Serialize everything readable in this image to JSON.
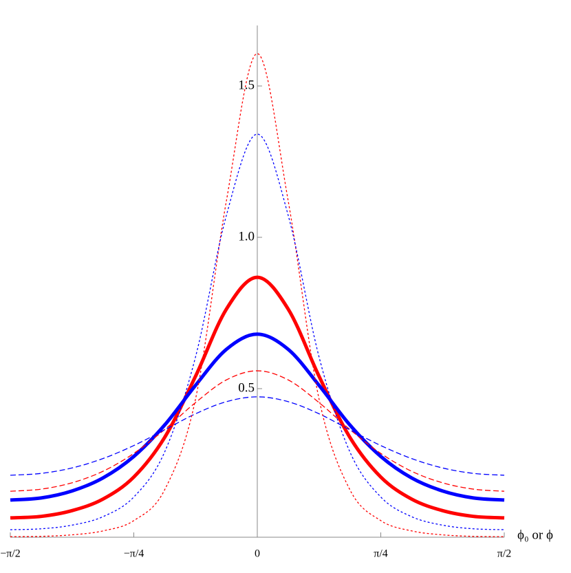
{
  "chart_data": {
    "type": "line",
    "xlabel": "ϕ₀ or ϕ",
    "x": [
      -1.5708,
      -1.3744,
      -1.1781,
      -0.9817,
      -0.7854,
      -0.589,
      -0.3927,
      -0.1963,
      0,
      0.1963,
      0.3927,
      0.589,
      0.7854,
      0.9817,
      1.1781,
      1.3744,
      1.5708
    ],
    "series": [
      {
        "color": "#ff0000",
        "style": "solid",
        "width": 5,
        "values": [
          0.073,
          0.078,
          0.097,
          0.135,
          0.208,
          0.339,
          0.541,
          0.763,
          0.868,
          0.763,
          0.541,
          0.339,
          0.208,
          0.135,
          0.097,
          0.078,
          0.073
        ]
      },
      {
        "color": "#0000ff",
        "style": "solid",
        "width": 5,
        "values": [
          0.132,
          0.139,
          0.162,
          0.205,
          0.276,
          0.38,
          0.511,
          0.63,
          0.68,
          0.63,
          0.511,
          0.38,
          0.276,
          0.205,
          0.162,
          0.139,
          0.132
        ]
      },
      {
        "color": "#ff0000",
        "style": "dashed",
        "width": 1.3,
        "values": [
          0.161,
          0.168,
          0.189,
          0.227,
          0.286,
          0.365,
          0.454,
          0.529,
          0.559,
          0.529,
          0.454,
          0.365,
          0.286,
          0.227,
          0.189,
          0.168,
          0.161
        ]
      },
      {
        "color": "#0000ff",
        "style": "dashed",
        "width": 1.3,
        "values": [
          0.214,
          0.22,
          0.238,
          0.269,
          0.312,
          0.364,
          0.417,
          0.457,
          0.473,
          0.457,
          0.417,
          0.364,
          0.312,
          0.269,
          0.238,
          0.22,
          0.214
        ]
      },
      {
        "color": "#ff0000",
        "style": "dotted",
        "width": 1.3,
        "values": [
          0.011,
          0.012,
          0.017,
          0.03,
          0.064,
          0.166,
          0.466,
          1.121,
          1.607,
          1.121,
          0.466,
          0.166,
          0.064,
          0.03,
          0.017,
          0.012,
          0.011
        ]
      },
      {
        "color": "#0000ff",
        "style": "dotted",
        "width": 1.3,
        "values": [
          0.034,
          0.037,
          0.049,
          0.077,
          0.142,
          0.291,
          0.605,
          1.073,
          1.341,
          1.073,
          0.605,
          0.291,
          0.142,
          0.077,
          0.049,
          0.037,
          0.034
        ]
      }
    ],
    "xlim": [
      -1.5708,
      1.5708
    ],
    "xticks": [
      {
        "value": -1.5708,
        "label": "−π/2"
      },
      {
        "value": -0.7854,
        "label": "−π/4"
      },
      0,
      {
        "value": 0.7854,
        "label": "π/4"
      },
      {
        "value": 1.5708,
        "label": "π/2"
      }
    ],
    "ylim": [
      0,
      1.7
    ],
    "yticks": [
      0.5,
      {
        "value": 1,
        "label": "1.0"
      },
      1.5
    ],
    "grid": false
  }
}
